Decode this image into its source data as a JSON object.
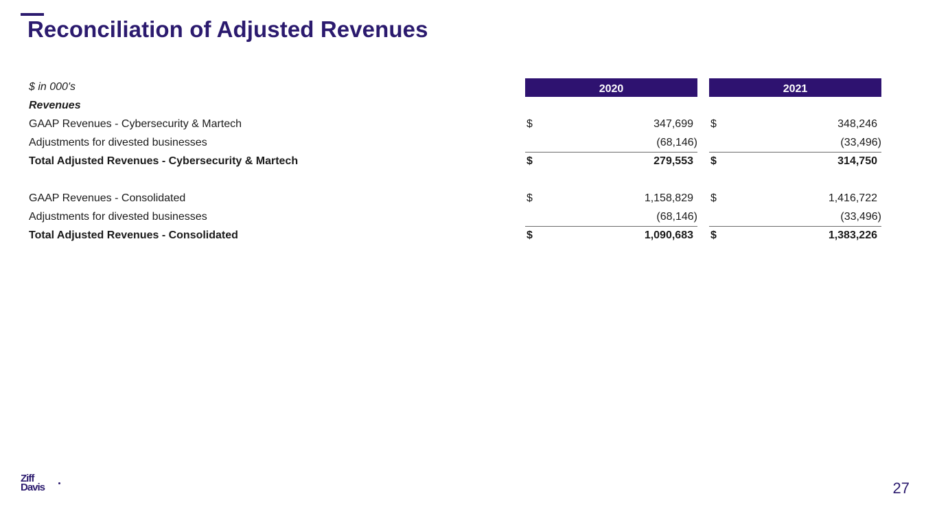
{
  "slide": {
    "title": "Reconciliation of Adjusted Revenues",
    "page_number": "27",
    "logo": {
      "line1": "Ziff",
      "line2": "Davis"
    },
    "brand_color": "#2b1a6e",
    "header_color": "#2e1270"
  },
  "table": {
    "units_label": "$ in 000's",
    "columns": [
      "2020",
      "2021"
    ],
    "section_label": "Revenues",
    "rows": [
      {
        "label": "GAAP Revenues - Cybersecurity & Martech",
        "c1_cur": "$",
        "c1": "347,699",
        "c2_cur": "$",
        "c2": "348,246"
      },
      {
        "label": "Adjustments for divested businesses",
        "c1_cur": "",
        "c1": "(68,146)",
        "c2_cur": "",
        "c2": "(33,496)"
      },
      {
        "label": "Total Adjusted Revenues - Cybersecurity & Martech",
        "c1_cur": "$",
        "c1": "279,553",
        "c2_cur": "$",
        "c2": "314,750"
      },
      {
        "label": "GAAP Revenues - Consolidated",
        "c1_cur": "$",
        "c1": "1,158,829",
        "c2_cur": "$",
        "c2": "1,416,722"
      },
      {
        "label": "Adjustments for divested businesses",
        "c1_cur": "",
        "c1": "(68,146)",
        "c2_cur": "",
        "c2": "(33,496)"
      },
      {
        "label": "Total Adjusted Revenues - Consolidated",
        "c1_cur": "$",
        "c1": "1,090,683",
        "c2_cur": "$",
        "c2": "1,383,226"
      }
    ]
  }
}
